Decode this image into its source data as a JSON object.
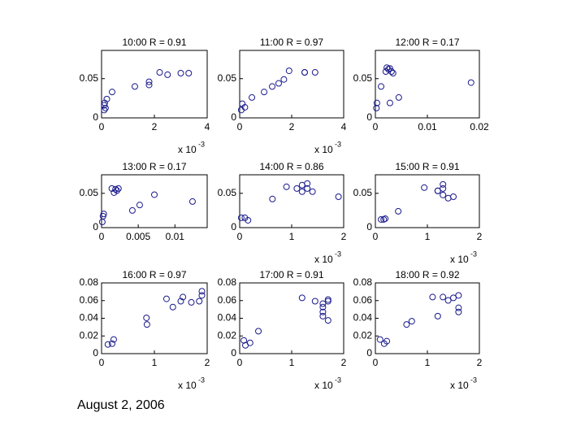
{
  "chart_data": [
    {
      "type": "scatter",
      "title": "10:00 R = 0.91",
      "color": "#1a1a8c",
      "x": [
        0.0001,
        0.0001,
        0.00012,
        0.00015,
        0.0002,
        0.0004,
        0.00126,
        0.0018,
        0.0018,
        0.0022,
        0.0025,
        0.003,
        0.0033
      ],
      "values": [
        0.01,
        0.016,
        0.019,
        0.0125,
        0.024,
        0.033,
        0.04,
        0.042,
        0.046,
        0.058,
        0.055,
        0.057,
        0.057
      ],
      "xlim": [
        0,
        0.004
      ],
      "xticks": [
        0,
        {
          "value": 0.002,
          "label": "2"
        },
        {
          "value": 0.004,
          "label": "4"
        }
      ],
      "ylim": [
        0,
        0.086
      ],
      "yticks": [
        0,
        0.05
      ],
      "x_multiplier": "x 10",
      "x_multiplier_exp": "-3"
    },
    {
      "type": "scatter",
      "title": "11:00 R = 0.97",
      "color": "#1a1a8c",
      "x": [
        6e-05,
        0.0001,
        0.0002,
        0.00047,
        0.00094,
        0.00125,
        0.0015,
        0.0017,
        0.0019,
        0.0025,
        0.0025,
        0.0029
      ],
      "values": [
        0.01,
        0.018,
        0.0135,
        0.026,
        0.033,
        0.04,
        0.044,
        0.049,
        0.06,
        0.058,
        0.058,
        0.058
      ],
      "xlim": [
        0,
        0.004
      ],
      "xticks": [
        0,
        {
          "value": 0.002,
          "label": "2"
        },
        {
          "value": 0.004,
          "label": "4"
        }
      ],
      "ylim": [
        0,
        0.086
      ],
      "yticks": [
        0,
        0.05
      ],
      "x_multiplier": "x 10",
      "x_multiplier_exp": "-3"
    },
    {
      "type": "scatter",
      "title": "12:00 R = 0.17",
      "color": "#1a1a8c",
      "x": [
        0.0002,
        0.0003,
        0.0022,
        0.0025,
        0.0028,
        0.0031,
        0.002,
        0.0034,
        0.0011,
        0.0028,
        0.0045,
        0.0184
      ],
      "values": [
        0.0125,
        0.019,
        0.064,
        0.062,
        0.063,
        0.059,
        0.059,
        0.057,
        0.04,
        0.019,
        0.026,
        0.045
      ],
      "xlim": [
        0,
        0.02
      ],
      "xticks": [
        0,
        0.01,
        0.02
      ],
      "ylim": [
        0,
        0.086
      ],
      "yticks": [
        0,
        0.05
      ]
    },
    {
      "type": "scatter",
      "title": "13:00 R = 0.17",
      "color": "#1a1a8c",
      "x": [
        0.0001,
        0.0002,
        0.0003,
        0.0014,
        0.0019,
        0.0021,
        0.0017,
        0.0023,
        0.0042,
        0.0052,
        0.0072,
        0.0124
      ],
      "values": [
        0.0083,
        0.0167,
        0.02,
        0.057,
        0.056,
        0.054,
        0.051,
        0.057,
        0.025,
        0.033,
        0.048,
        0.038
      ],
      "xlim": [
        0,
        0.0144
      ],
      "xticks": [
        0,
        0.005,
        0.01
      ],
      "ylim": [
        0,
        0.077
      ],
      "yticks": [
        0,
        0.05
      ]
    },
    {
      "type": "scatter",
      "title": "14:00 R = 0.86",
      "color": "#1a1a8c",
      "x": [
        3e-05,
        0.0001,
        0.00016,
        0.00063,
        0.0009,
        0.0011,
        0.0012,
        0.0012,
        0.0013,
        0.0013,
        0.0014,
        0.0019
      ],
      "values": [
        0.0143,
        0.0143,
        0.0107,
        0.0417,
        0.0595,
        0.057,
        0.0619,
        0.0524,
        0.0643,
        0.057,
        0.0524,
        0.045
      ],
      "xlim": [
        0,
        0.002
      ],
      "xticks": [
        0,
        {
          "value": 0.001,
          "label": "1"
        },
        {
          "value": 0.002,
          "label": "2"
        }
      ],
      "ylim": [
        0,
        0.077
      ],
      "yticks": [
        0,
        0.05
      ],
      "x_multiplier": "x 10",
      "x_multiplier_exp": "-3"
    },
    {
      "type": "scatter",
      "title": "15:00 R = 0.91",
      "color": "#1a1a8c",
      "x": [
        0.00011,
        0.00016,
        0.00019,
        0.00044,
        0.00094,
        0.0012,
        0.0012,
        0.0013,
        0.0013,
        0.0013,
        0.0014,
        0.0015
      ],
      "values": [
        0.0119,
        0.0119,
        0.0131,
        0.0238,
        0.0583,
        0.0536,
        0.0536,
        0.057,
        0.063,
        0.0476,
        0.0429,
        0.045
      ],
      "xlim": [
        0,
        0.002
      ],
      "xticks": [
        0,
        {
          "value": 0.001,
          "label": "1"
        },
        {
          "value": 0.002,
          "label": "2"
        }
      ],
      "ylim": [
        0,
        0.077
      ],
      "yticks": [
        0,
        0.05
      ],
      "x_multiplier": "x 10",
      "x_multiplier_exp": "-3"
    },
    {
      "type": "scatter",
      "title": "16:00 R = 0.97",
      "color": "#1a1a8c",
      "x": [
        0.00012,
        0.0002,
        0.00023,
        0.00085,
        0.00086,
        0.00123,
        0.00135,
        0.0015,
        0.00154,
        0.0017,
        0.00185,
        0.0019,
        0.0019
      ],
      "values": [
        0.0104,
        0.0113,
        0.016,
        0.0405,
        0.033,
        0.062,
        0.0527,
        0.0593,
        0.064,
        0.058,
        0.0593,
        0.0659,
        0.0706
      ],
      "xlim": [
        0,
        0.002
      ],
      "xticks": [
        0,
        {
          "value": 0.001,
          "label": "1"
        },
        {
          "value": 0.002,
          "label": "2"
        }
      ],
      "ylim": [
        0,
        0.08
      ],
      "yticks": [
        0,
        0.02,
        0.04,
        0.06,
        0.08
      ],
      "x_multiplier": "x 10",
      "x_multiplier_exp": "-3"
    },
    {
      "type": "scatter",
      "title": "17:00 R = 0.91",
      "color": "#1a1a8c",
      "x": [
        8e-05,
        0.00011,
        0.0002,
        0.00036,
        0.0012,
        0.00145,
        0.0016,
        0.0016,
        0.0016,
        0.0017,
        0.0017,
        0.0017,
        0.0016
      ],
      "values": [
        0.015,
        0.0094,
        0.0122,
        0.0254,
        0.0631,
        0.0593,
        0.0527,
        0.0471,
        0.0565,
        0.0376,
        0.0593,
        0.0612,
        0.0424
      ],
      "xlim": [
        0,
        0.002
      ],
      "xticks": [
        0,
        {
          "value": 0.001,
          "label": "1"
        },
        {
          "value": 0.002,
          "label": "2"
        }
      ],
      "ylim": [
        0,
        0.08
      ],
      "yticks": [
        0,
        0.02,
        0.04,
        0.06,
        0.08
      ],
      "x_multiplier": "x 10",
      "x_multiplier_exp": "-3"
    },
    {
      "type": "scatter",
      "title": "18:00 R = 0.92",
      "color": "#1a1a8c",
      "x": [
        9e-05,
        0.00017,
        0.00022,
        0.0006,
        0.0007,
        0.0011,
        0.0012,
        0.0013,
        0.0014,
        0.0015,
        0.0016,
        0.0016,
        0.0016
      ],
      "values": [
        0.016,
        0.0113,
        0.0141,
        0.033,
        0.0367,
        0.064,
        0.0424,
        0.064,
        0.0602,
        0.0631,
        0.0471,
        0.0518,
        0.0659
      ],
      "xlim": [
        0,
        0.002
      ],
      "xticks": [
        0,
        {
          "value": 0.001,
          "label": "1"
        },
        {
          "value": 0.002,
          "label": "2"
        }
      ],
      "ylim": [
        0,
        0.08
      ],
      "yticks": [
        0,
        0.02,
        0.04,
        0.06,
        0.08
      ],
      "x_multiplier": "x 10",
      "x_multiplier_exp": "-3"
    }
  ],
  "footer": "August 2, 2006"
}
